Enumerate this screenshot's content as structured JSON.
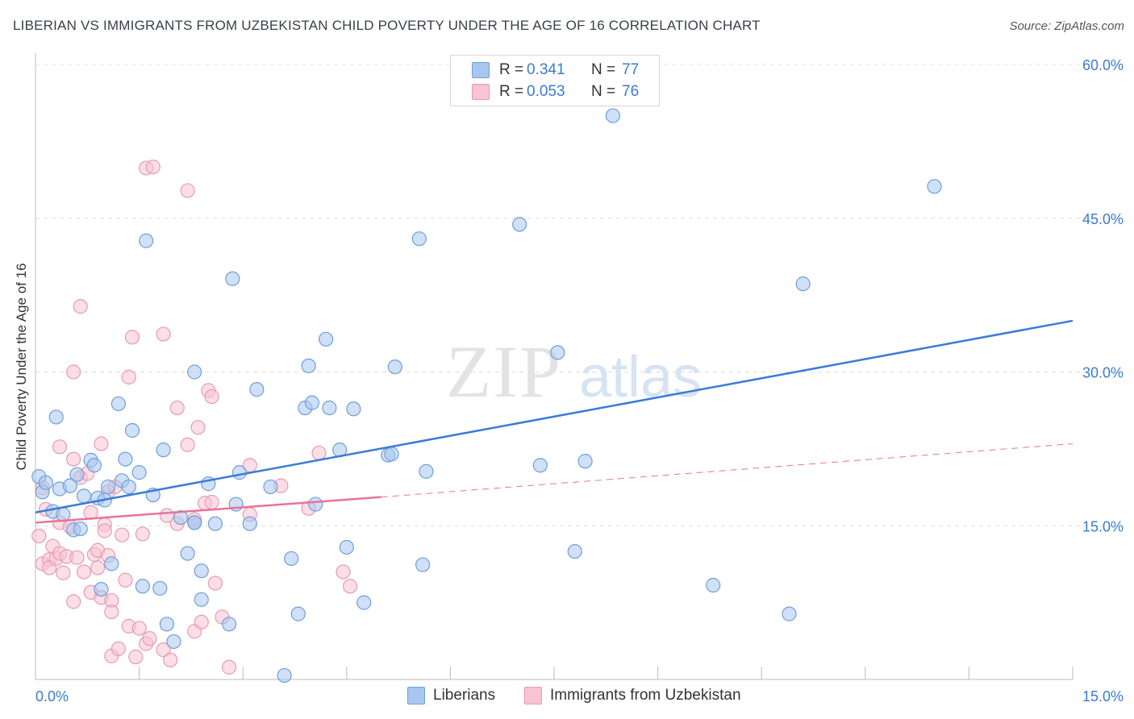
{
  "header": {
    "title": "LIBERIAN VS IMMIGRANTS FROM UZBEKISTAN CHILD POVERTY UNDER THE AGE OF 16 CORRELATION CHART",
    "source": "Source: ZipAtlas.com"
  },
  "watermark": {
    "zip": "ZIP",
    "atlas": "atlas"
  },
  "legend": {
    "rows": [
      {
        "r_label": "R =",
        "r_value": "0.341",
        "n_label": "N =",
        "n_value": "77",
        "color": "#a7c7f0",
        "border": "#6f9fd8"
      },
      {
        "r_label": "R =",
        "r_value": "0.053",
        "n_label": "N =",
        "n_value": "76",
        "color": "#f8c3d2",
        "border": "#e79bb2"
      }
    ]
  },
  "bottom_legend": {
    "series_a": "Liberians",
    "series_b": "Immigrants from Uzbekistan"
  },
  "axis_text": {
    "x_min": "0.0%",
    "x_max": "15.0%",
    "ylabel": "Child Poverty Under the Age of 16",
    "y_ticks": [
      "15.0%",
      "30.0%",
      "45.0%",
      "60.0%"
    ]
  },
  "chart_data": {
    "type": "scatter",
    "xlabel": "",
    "ylabel": "Child Poverty Under the Age of 16",
    "xlim": [
      0,
      15
    ],
    "ylim": [
      0,
      60
    ],
    "y_ticks": [
      15,
      30,
      45,
      60
    ],
    "grid": "horizontal dashed",
    "legend_position": "top-center",
    "colors": {
      "blue": "#3a7bd5",
      "blue_fill": "#a7c7f0",
      "pink": "#e8729a",
      "pink_fill": "#f8c3d2"
    },
    "series": [
      {
        "name": "Liberians",
        "r": 0.341,
        "n": 77,
        "trend": {
          "x": [
            0,
            15
          ],
          "y": [
            16.3,
            35.0
          ]
        },
        "points": [
          [
            0.05,
            19.8
          ],
          [
            0.1,
            18.3
          ],
          [
            0.15,
            19.2
          ],
          [
            0.25,
            16.4
          ],
          [
            0.3,
            25.6
          ],
          [
            0.35,
            18.6
          ],
          [
            0.4,
            16.1
          ],
          [
            0.5,
            18.9
          ],
          [
            0.55,
            14.6
          ],
          [
            0.6,
            20.0
          ],
          [
            0.65,
            14.7
          ],
          [
            0.7,
            17.9
          ],
          [
            0.8,
            21.4
          ],
          [
            0.85,
            20.9
          ],
          [
            0.9,
            17.7
          ],
          [
            0.95,
            8.8
          ],
          [
            1.0,
            17.5
          ],
          [
            1.05,
            18.8
          ],
          [
            1.1,
            11.3
          ],
          [
            1.2,
            26.9
          ],
          [
            1.25,
            19.4
          ],
          [
            1.3,
            21.5
          ],
          [
            1.35,
            18.8
          ],
          [
            1.4,
            24.3
          ],
          [
            1.5,
            20.2
          ],
          [
            1.55,
            9.1
          ],
          [
            1.6,
            42.8
          ],
          [
            1.7,
            18.0
          ],
          [
            1.8,
            8.9
          ],
          [
            1.85,
            22.4
          ],
          [
            1.9,
            5.4
          ],
          [
            2.0,
            3.7
          ],
          [
            2.1,
            15.8
          ],
          [
            2.2,
            12.3
          ],
          [
            2.3,
            15.3
          ],
          [
            2.3,
            15.3
          ],
          [
            2.3,
            30.0
          ],
          [
            2.4,
            10.6
          ],
          [
            2.4,
            7.8
          ],
          [
            2.5,
            19.1
          ],
          [
            2.6,
            15.2
          ],
          [
            2.8,
            5.4
          ],
          [
            2.85,
            39.1
          ],
          [
            2.9,
            17.1
          ],
          [
            2.95,
            20.2
          ],
          [
            3.1,
            15.2
          ],
          [
            3.2,
            28.3
          ],
          [
            3.4,
            18.8
          ],
          [
            3.6,
            0.4
          ],
          [
            3.7,
            11.8
          ],
          [
            3.8,
            6.4
          ],
          [
            3.9,
            26.5
          ],
          [
            3.95,
            30.6
          ],
          [
            4.0,
            27.0
          ],
          [
            4.05,
            17.1
          ],
          [
            4.2,
            33.2
          ],
          [
            4.25,
            26.5
          ],
          [
            4.4,
            22.4
          ],
          [
            4.5,
            12.9
          ],
          [
            4.6,
            26.4
          ],
          [
            4.75,
            7.5
          ],
          [
            5.1,
            21.9
          ],
          [
            5.15,
            22.0
          ],
          [
            5.2,
            30.5
          ],
          [
            5.55,
            43.0
          ],
          [
            5.6,
            11.2
          ],
          [
            5.65,
            20.3
          ],
          [
            7.0,
            44.4
          ],
          [
            7.3,
            20.9
          ],
          [
            7.55,
            31.9
          ],
          [
            7.8,
            12.5
          ],
          [
            7.95,
            21.3
          ],
          [
            8.35,
            55.0
          ],
          [
            9.8,
            9.2
          ],
          [
            10.9,
            6.4
          ],
          [
            11.1,
            38.6
          ],
          [
            13.0,
            48.1
          ]
        ]
      },
      {
        "name": "Immigrants from Uzbekistan",
        "r": 0.053,
        "n": 76,
        "trend": {
          "x": [
            0,
            5.0
          ],
          "y": [
            15.3,
            17.8
          ]
        },
        "trend_extended": {
          "x": [
            5.0,
            15
          ],
          "y": [
            17.8,
            23.0
          ]
        },
        "points": [
          [
            0.05,
            14.0
          ],
          [
            0.1,
            11.3
          ],
          [
            0.1,
            18.7
          ],
          [
            0.15,
            16.6
          ],
          [
            0.2,
            11.7
          ],
          [
            0.2,
            10.9
          ],
          [
            0.25,
            13.0
          ],
          [
            0.3,
            11.8
          ],
          [
            0.35,
            12.3
          ],
          [
            0.35,
            15.3
          ],
          [
            0.35,
            22.7
          ],
          [
            0.4,
            10.4
          ],
          [
            0.45,
            12.0
          ],
          [
            0.5,
            14.9
          ],
          [
            0.55,
            21.5
          ],
          [
            0.55,
            30.0
          ],
          [
            0.55,
            7.6
          ],
          [
            0.6,
            11.9
          ],
          [
            0.65,
            19.7
          ],
          [
            0.65,
            36.4
          ],
          [
            0.7,
            10.5
          ],
          [
            0.75,
            20.1
          ],
          [
            0.8,
            8.5
          ],
          [
            0.8,
            16.3
          ],
          [
            0.85,
            12.2
          ],
          [
            0.9,
            10.9
          ],
          [
            0.9,
            12.6
          ],
          [
            0.95,
            23.0
          ],
          [
            0.95,
            8.0
          ],
          [
            1.0,
            15.1
          ],
          [
            1.0,
            14.5
          ],
          [
            1.05,
            12.1
          ],
          [
            1.05,
            18.3
          ],
          [
            1.1,
            7.7
          ],
          [
            1.1,
            6.6
          ],
          [
            1.1,
            2.3
          ],
          [
            1.15,
            18.8
          ],
          [
            1.2,
            3.0
          ],
          [
            1.25,
            14.1
          ],
          [
            1.3,
            9.7
          ],
          [
            1.35,
            29.5
          ],
          [
            1.35,
            5.2
          ],
          [
            1.4,
            33.4
          ],
          [
            1.45,
            2.2
          ],
          [
            1.5,
            5.0
          ],
          [
            1.55,
            14.2
          ],
          [
            1.6,
            3.5
          ],
          [
            1.65,
            4.0
          ],
          [
            1.6,
            49.9
          ],
          [
            1.7,
            50.0
          ],
          [
            1.85,
            2.9
          ],
          [
            1.85,
            33.7
          ],
          [
            1.9,
            16.0
          ],
          [
            1.95,
            1.9
          ],
          [
            2.05,
            15.2
          ],
          [
            2.05,
            26.5
          ],
          [
            2.2,
            47.7
          ],
          [
            2.2,
            22.9
          ],
          [
            2.3,
            4.7
          ],
          [
            2.3,
            15.6
          ],
          [
            2.35,
            24.6
          ],
          [
            2.4,
            5.6
          ],
          [
            2.45,
            17.2
          ],
          [
            2.5,
            28.2
          ],
          [
            2.55,
            27.6
          ],
          [
            2.55,
            17.3
          ],
          [
            2.6,
            9.4
          ],
          [
            2.7,
            6.1
          ],
          [
            2.8,
            1.2
          ],
          [
            3.1,
            20.9
          ],
          [
            3.1,
            16.1
          ],
          [
            3.55,
            18.9
          ],
          [
            3.95,
            16.7
          ],
          [
            4.1,
            22.1
          ],
          [
            4.45,
            10.5
          ],
          [
            4.55,
            9.1
          ]
        ]
      }
    ]
  }
}
